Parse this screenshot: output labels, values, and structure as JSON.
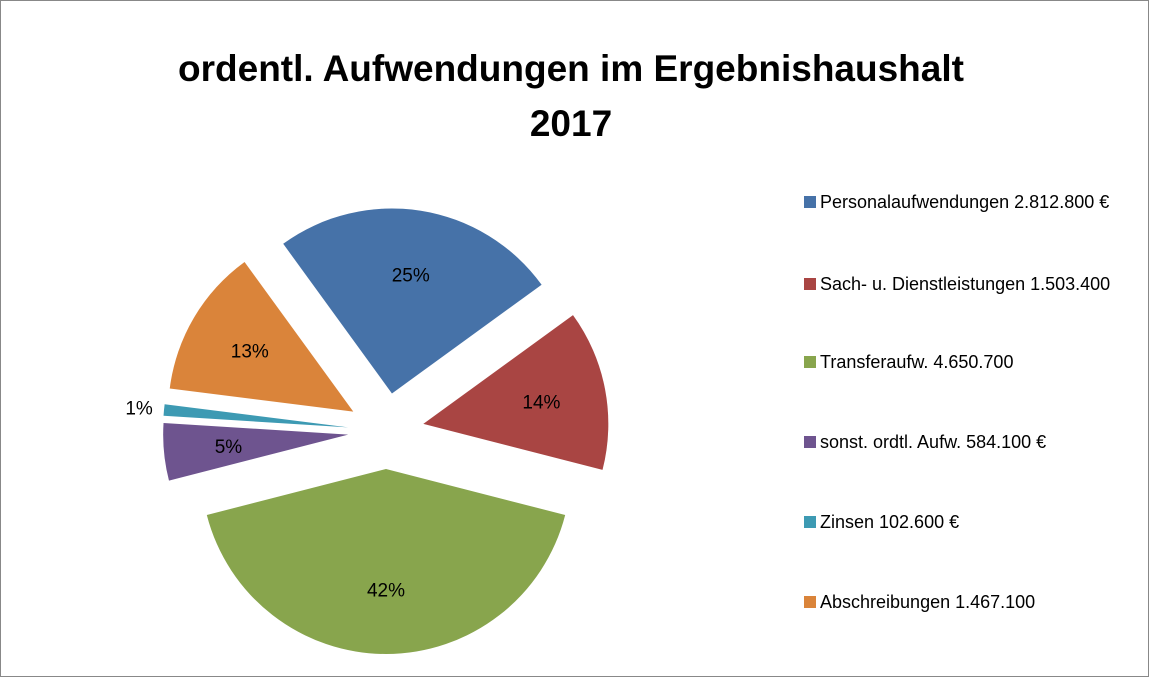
{
  "chart_data": {
    "type": "pie",
    "title": [
      "ordentl. Aufwendungen im Ergebnishaushalt",
      "2017"
    ],
    "categories": [
      "Personalaufwendungen 2.812.800 €",
      "Sach- u. Dienstleistungen 1.503.400",
      "Transferaufw. 4.650.700",
      "sonst. ordtl. Aufw. 584.100 €",
      "Zinsen 102.600 €",
      "Abschreibungen 1.467.100"
    ],
    "values": [
      25,
      14,
      42,
      5,
      1,
      13
    ],
    "value_labels": [
      "25%",
      "14%",
      "42%",
      "5%",
      "1%",
      "13%"
    ],
    "colors": [
      "#4672a8",
      "#a94543",
      "#88a54d",
      "#6e548f",
      "#3d9ab3",
      "#da843a"
    ],
    "legend": "right"
  }
}
